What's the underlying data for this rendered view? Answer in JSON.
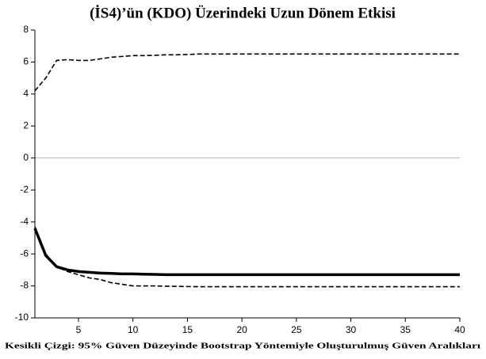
{
  "chart_data": {
    "type": "line",
    "title": "(İS4)’ün (KDO) Üzerindeki Uzun Dönem Etkisi",
    "x_label": "Kesikli Çizgi: 95% Güven Düzeyinde Bootstrap Yöntemiyle Oluşturulmuş Güven Aralıkları",
    "x": [
      1,
      2,
      3,
      4,
      5,
      6,
      7,
      8,
      9,
      10,
      11,
      12,
      13,
      14,
      15,
      16,
      17,
      18,
      19,
      20,
      21,
      22,
      23,
      24,
      25,
      26,
      27,
      28,
      29,
      30,
      31,
      32,
      33,
      34,
      35,
      36,
      37,
      38,
      39,
      40
    ],
    "series": [
      {
        "color": "#000000",
        "dashed": true,
        "values": [
          4.2,
          5.0,
          6.1,
          6.15,
          6.1,
          6.1,
          6.2,
          6.3,
          6.35,
          6.4,
          6.4,
          6.42,
          6.45,
          6.45,
          6.47,
          6.5,
          6.5,
          6.5,
          6.5,
          6.5,
          6.5,
          6.5,
          6.5,
          6.5,
          6.5,
          6.5,
          6.5,
          6.5,
          6.5,
          6.5,
          6.5,
          6.5,
          6.5,
          6.5,
          6.5,
          6.5,
          6.5,
          6.5,
          6.5,
          6.5
        ]
      },
      {
        "color": "#000000",
        "dashed": false,
        "values": [
          -4.4,
          -6.1,
          -6.8,
          -7.0,
          -7.1,
          -7.15,
          -7.2,
          -7.22,
          -7.25,
          -7.25,
          -7.27,
          -7.28,
          -7.3,
          -7.3,
          -7.3,
          -7.3,
          -7.3,
          -7.3,
          -7.3,
          -7.3,
          -7.3,
          -7.3,
          -7.3,
          -7.3,
          -7.3,
          -7.3,
          -7.3,
          -7.3,
          -7.3,
          -7.3,
          -7.3,
          -7.3,
          -7.3,
          -7.3,
          -7.3,
          -7.3,
          -7.3,
          -7.3,
          -7.3,
          -7.3
        ]
      },
      {
        "color": "#000000",
        "dashed": true,
        "values": [
          -4.3,
          -6.0,
          -6.8,
          -7.1,
          -7.3,
          -7.5,
          -7.6,
          -7.8,
          -7.9,
          -8.0,
          -8.0,
          -8.0,
          -8.02,
          -8.03,
          -8.04,
          -8.05,
          -8.05,
          -8.05,
          -8.05,
          -8.05,
          -8.05,
          -8.05,
          -8.05,
          -8.05,
          -8.05,
          -8.05,
          -8.05,
          -8.05,
          -8.05,
          -8.05,
          -8.05,
          -8.05,
          -8.05,
          -8.05,
          -8.05,
          -8.05,
          -8.05,
          -8.05,
          -8.05,
          -8.05
        ]
      }
    ],
    "xlim": [
      1,
      40
    ],
    "xticks": [
      5,
      10,
      15,
      20,
      25,
      30,
      35,
      40
    ],
    "ylim": [
      -10,
      8
    ],
    "yticks": [
      -10,
      -8,
      -6,
      -4,
      -2,
      0,
      2,
      4,
      6,
      8
    ],
    "zero_line": true,
    "zero_line_color": "#b0b0b0"
  }
}
